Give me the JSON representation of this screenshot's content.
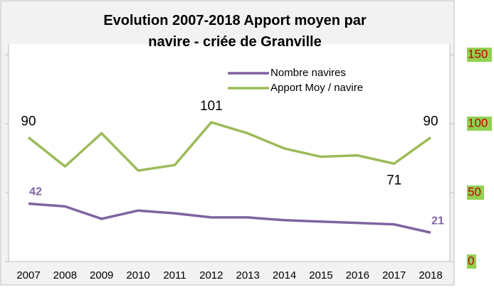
{
  "chart_data": {
    "type": "line",
    "title": "Evolution 2007-2018  Apport moyen par navire - criée de Granville",
    "categories": [
      "2007",
      "2008",
      "2009",
      "2010",
      "2011",
      "2012",
      "2013",
      "2014",
      "2015",
      "2016",
      "2017",
      "2018"
    ],
    "series": [
      {
        "name": "Nombre navires",
        "color": "#8064a2",
        "values": [
          42,
          40,
          31,
          37,
          35,
          32,
          32,
          30,
          29,
          28,
          27,
          21
        ],
        "value_labels": [
          "42",
          null,
          null,
          null,
          null,
          null,
          null,
          null,
          null,
          null,
          null,
          "21"
        ]
      },
      {
        "name": "Apport Moy / navire",
        "color": "#9bbb59",
        "values": [
          90,
          69,
          93,
          66,
          70,
          101,
          93,
          82,
          76,
          77,
          71,
          90
        ],
        "value_labels": [
          "90",
          null,
          null,
          null,
          null,
          "101",
          null,
          null,
          null,
          null,
          "71",
          "90"
        ]
      }
    ],
    "ylim": [
      0,
      150
    ],
    "yticks": [
      0,
      50,
      100,
      150
    ],
    "legend": "top"
  }
}
